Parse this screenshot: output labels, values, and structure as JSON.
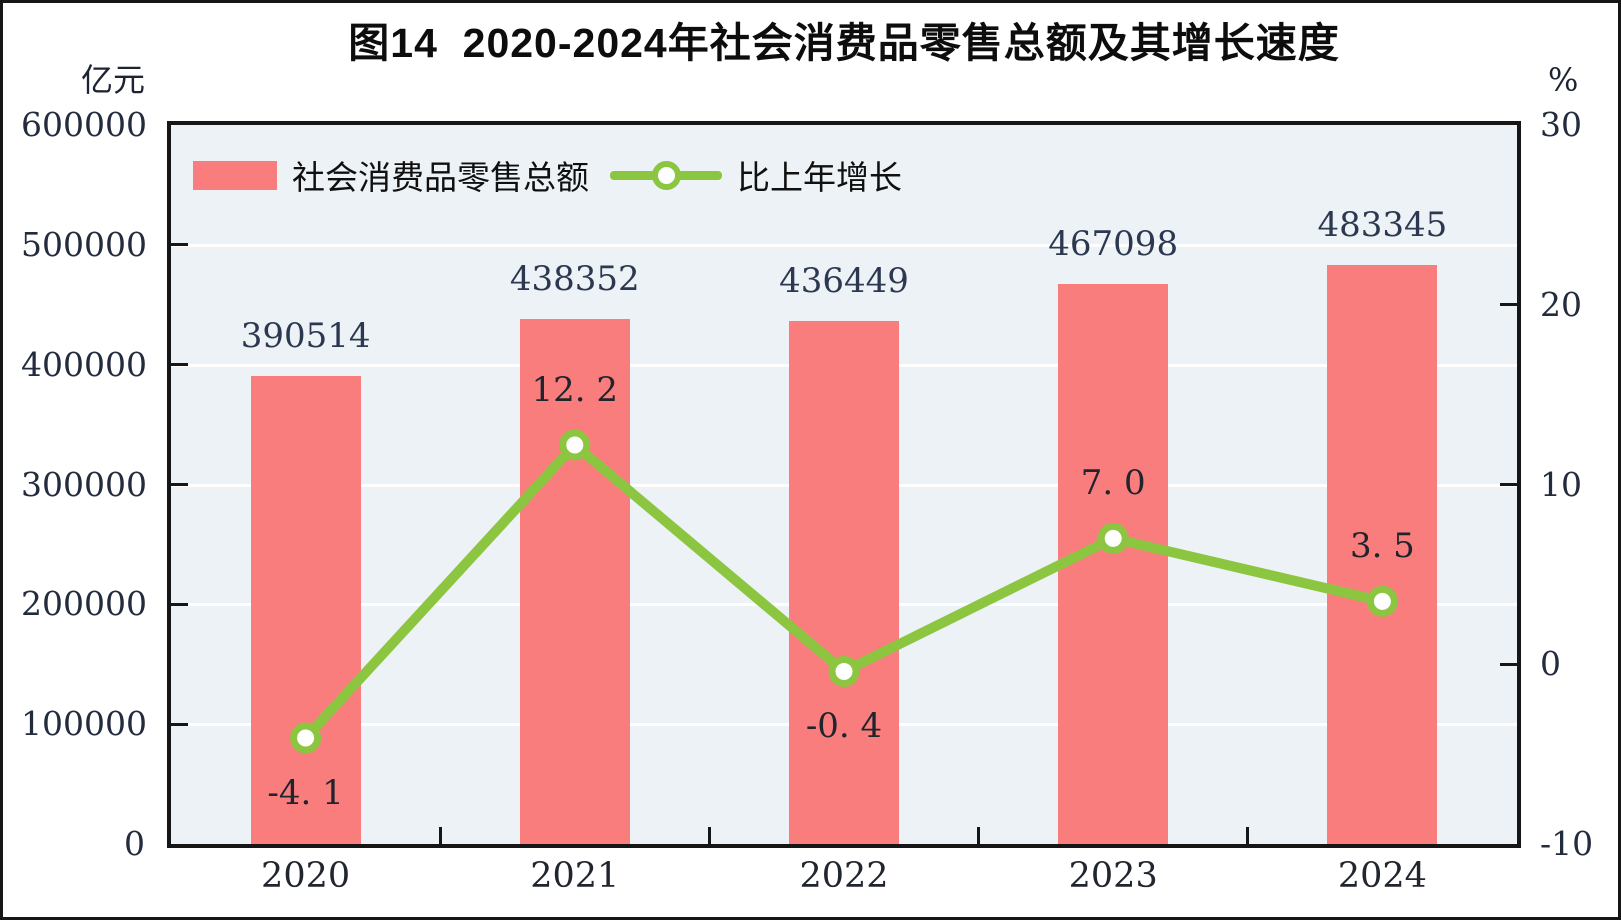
{
  "figure": {
    "title": "图14  2020-2024年社会消费品零售总额及其增长速度",
    "left_axis_unit": "亿元",
    "right_axis_unit": "%"
  },
  "legend": {
    "bar_label": "社会消费品零售总额",
    "line_label": "比上年增长"
  },
  "colors": {
    "bar": "#FA7D7E",
    "line": "#8CC540",
    "marker_fill": "#FFFFFF",
    "plot_background": "#ECF2F6",
    "gridline": "#FFFFFF",
    "axis": "#161616"
  },
  "chart_data": {
    "type": "bar+line combo",
    "title": "图14  2020-2024年社会消费品零售总额及其增长速度",
    "categories": [
      "2020",
      "2021",
      "2022",
      "2023",
      "2024"
    ],
    "series": [
      {
        "name": "社会消费品零售总额",
        "type": "bar",
        "axis": "left",
        "unit": "亿元",
        "values": [
          390514,
          438352,
          436449,
          467098,
          483345
        ],
        "labels": [
          "390514",
          "438352",
          "436449",
          "467098",
          "483345"
        ],
        "color": "#FA7D7E"
      },
      {
        "name": "比上年增长",
        "type": "line",
        "axis": "right",
        "unit": "%",
        "values": [
          -4.1,
          12.2,
          -0.4,
          7.0,
          3.5
        ],
        "labels": [
          "-4. 1",
          "12. 2",
          "-0. 4",
          "7. 0",
          "3. 5"
        ],
        "label_side": [
          "below",
          "above",
          "below",
          "above",
          "above"
        ],
        "color": "#8CC540"
      }
    ],
    "left_axis": {
      "min": 0,
      "max": 600000,
      "tick_step": 100000,
      "ticks": [
        600000,
        500000,
        400000,
        300000,
        200000,
        100000,
        0
      ]
    },
    "right_axis": {
      "min": -10,
      "max": 30,
      "tick_step": 10,
      "ticks": [
        30,
        20,
        10,
        0,
        -10
      ]
    },
    "grid": true,
    "legend_position": "top-left-inside"
  }
}
